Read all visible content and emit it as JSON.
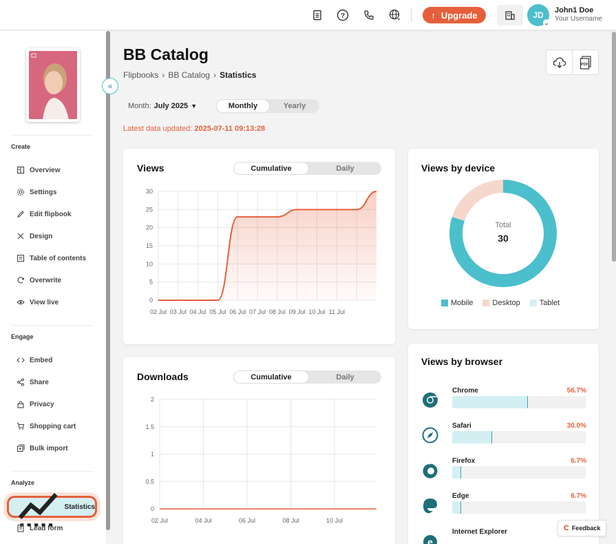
{
  "header": {
    "upgrade_label": "Upgrade",
    "avatar_initials": "JD",
    "user_name": "John1 Doe",
    "user_sub": "Your Username"
  },
  "sidebar": {
    "sections": [
      {
        "label": "Create",
        "items": [
          "Overview",
          "Settings",
          "Edit flipbook",
          "Design",
          "Table of contents",
          "Overwrite",
          "View live"
        ]
      },
      {
        "label": "Engage",
        "items": [
          "Embed",
          "Share",
          "Privacy",
          "Shopping cart",
          "Bulk import"
        ]
      },
      {
        "label": "Analyze",
        "items": [
          "Statistics",
          "Lead form"
        ]
      }
    ],
    "active_item": "Statistics"
  },
  "page": {
    "title": "BB Catalog",
    "breadcrumb": [
      "Flipbooks",
      "BB Catalog",
      "Statistics"
    ],
    "month_label": "Month:",
    "month_value": "July 2025",
    "period_tabs": [
      "Monthly",
      "Yearly"
    ],
    "updated_label": "Latest data updated:",
    "updated_value": "2025-07-11 09:13:28"
  },
  "views_card": {
    "title": "Views",
    "tabs": [
      "Cumulative",
      "Daily"
    ]
  },
  "downloads_card": {
    "title": "Downloads",
    "tabs": [
      "Cumulative",
      "Daily"
    ]
  },
  "device_card": {
    "title": "Views by device",
    "total_label": "Total",
    "total_value": "30",
    "legend": [
      "Mobile",
      "Desktop",
      "Tablet"
    ]
  },
  "browser_card": {
    "title": "Views by browser",
    "items": [
      {
        "name": "Chrome",
        "pct": "56.7%",
        "value": 56.7
      },
      {
        "name": "Safari",
        "pct": "30.0%",
        "value": 30.0
      },
      {
        "name": "Firefox",
        "pct": "6.7%",
        "value": 6.7
      },
      {
        "name": "Edge",
        "pct": "6.7%",
        "value": 6.7
      },
      {
        "name": "Internet Explorer",
        "pct": "",
        "value": 0
      }
    ]
  },
  "feedback_label": "Feedback",
  "colors": {
    "accent": "#e5603a",
    "teal": "#4cbfcc",
    "desktop": "#f6d7cc",
    "tablet": "#d4eff2"
  },
  "chart_data": [
    {
      "type": "line",
      "title": "Views",
      "categories": [
        "02 Jul",
        "03 Jul",
        "04 Jul",
        "05 Jul",
        "06 Jul",
        "07 Jul",
        "08 Jul",
        "09 Jul",
        "10 Jul",
        "11 Jul"
      ],
      "x": [
        1,
        2,
        3,
        4,
        5,
        6,
        7,
        8,
        9,
        10,
        11,
        12
      ],
      "y": [
        0,
        0,
        0,
        0,
        23,
        23,
        23,
        25,
        25,
        25,
        25,
        30
      ],
      "ylim": [
        0,
        30
      ],
      "yticks": [
        0,
        5,
        10,
        15,
        20,
        25,
        30
      ]
    },
    {
      "type": "line",
      "title": "Downloads",
      "categories": [
        "02 Jul",
        "04 Jul",
        "06 Jul",
        "08 Jul",
        "10 Jul"
      ],
      "values": [
        0,
        0,
        0,
        0,
        0
      ],
      "ylim": [
        0,
        2
      ],
      "yticks": [
        "0",
        "0.5",
        "1",
        "1.5",
        "2"
      ]
    },
    {
      "type": "pie",
      "title": "Views by device",
      "labels": [
        "Mobile",
        "Desktop",
        "Tablet"
      ],
      "values": [
        80,
        20,
        0
      ]
    }
  ]
}
